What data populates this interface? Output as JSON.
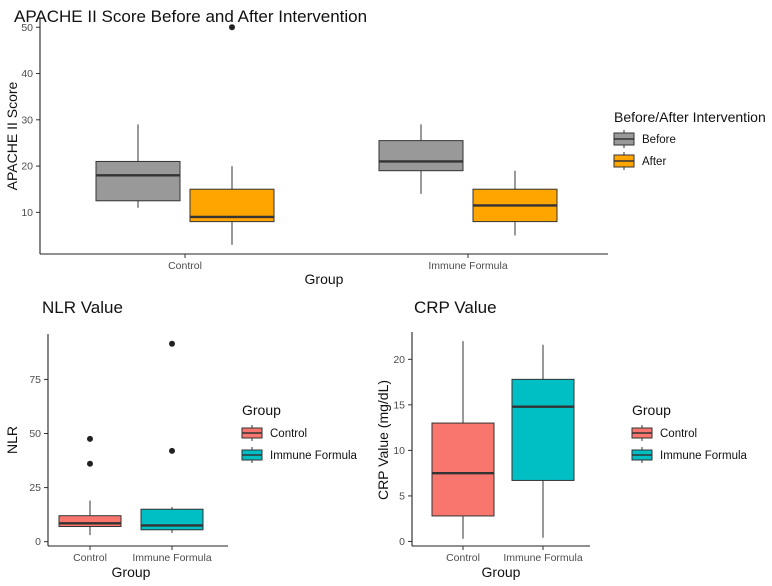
{
  "chart_data": [
    {
      "type": "boxplot",
      "title": "APACHE II Score Before and After Intervention",
      "xlabel": "Group",
      "ylabel": "APACHE II Score",
      "categories": [
        "Control",
        "Immune Formula"
      ],
      "ylim": [
        1,
        52
      ],
      "yticks": [
        10,
        20,
        30,
        40,
        50
      ],
      "legend": {
        "title": "Before/After Intervention",
        "placement": "right",
        "entries": [
          {
            "name": "Before",
            "color": "#999999"
          },
          {
            "name": "After",
            "color": "#FFA500"
          }
        ]
      },
      "series": [
        {
          "name": "Before",
          "color": "#999999",
          "boxes": [
            {
              "category": "Control",
              "min": 11,
              "q1": 12.5,
              "median": 18,
              "q3": 21,
              "max": 29,
              "outliers": []
            },
            {
              "category": "Immune Formula",
              "min": 14,
              "q1": 19,
              "median": 21,
              "q3": 25.5,
              "max": 29,
              "outliers": []
            }
          ]
        },
        {
          "name": "After",
          "color": "#FFA500",
          "boxes": [
            {
              "category": "Control",
              "min": 3,
              "q1": 8,
              "median": 9,
              "q3": 15,
              "max": 20,
              "outliers": [
                50
              ]
            },
            {
              "category": "Immune Formula",
              "min": 5,
              "q1": 8,
              "median": 11.5,
              "q3": 15,
              "max": 19,
              "outliers": []
            }
          ]
        }
      ]
    },
    {
      "type": "boxplot",
      "title": "NLR Value",
      "xlabel": "Group",
      "ylabel": "NLR",
      "categories": [
        "Control",
        "Immune Formula"
      ],
      "ylim": [
        -2,
        96
      ],
      "yticks": [
        0,
        25,
        50,
        75
      ],
      "legend": {
        "title": "Group",
        "placement": "right",
        "entries": [
          {
            "name": "Control",
            "color": "#F8766D"
          },
          {
            "name": "Immune Formula",
            "color": "#00BFC4"
          }
        ]
      },
      "series": [
        {
          "name": "Group",
          "boxes": [
            {
              "category": "Control",
              "color": "#F8766D",
              "min": 3,
              "q1": 7,
              "median": 8.5,
              "q3": 12,
              "max": 19,
              "outliers": [
                36,
                47.5
              ]
            },
            {
              "category": "Immune Formula",
              "color": "#00BFC4",
              "min": 4,
              "q1": 5.5,
              "median": 7.5,
              "q3": 15,
              "max": 16,
              "outliers": [
                42,
                91.5
              ]
            }
          ]
        }
      ]
    },
    {
      "type": "boxplot",
      "title": "CRP Value",
      "xlabel": "Group",
      "ylabel": "CRP Value (mg/dL)",
      "categories": [
        "Control",
        "Immune Formula"
      ],
      "ylim": [
        -0.5,
        23
      ],
      "yticks": [
        0,
        5,
        10,
        15,
        20
      ],
      "legend": {
        "title": "Group",
        "placement": "right",
        "entries": [
          {
            "name": "Control",
            "color": "#F8766D"
          },
          {
            "name": "Immune Formula",
            "color": "#00BFC4"
          }
        ]
      },
      "series": [
        {
          "name": "Group",
          "boxes": [
            {
              "category": "Control",
              "color": "#F8766D",
              "min": 0.3,
              "q1": 2.8,
              "median": 7.5,
              "q3": 13,
              "max": 22,
              "outliers": []
            },
            {
              "category": "Immune Formula",
              "color": "#00BFC4",
              "min": 0.4,
              "q1": 6.7,
              "median": 14.8,
              "q3": 17.8,
              "max": 21.6,
              "outliers": []
            }
          ]
        }
      ]
    }
  ]
}
